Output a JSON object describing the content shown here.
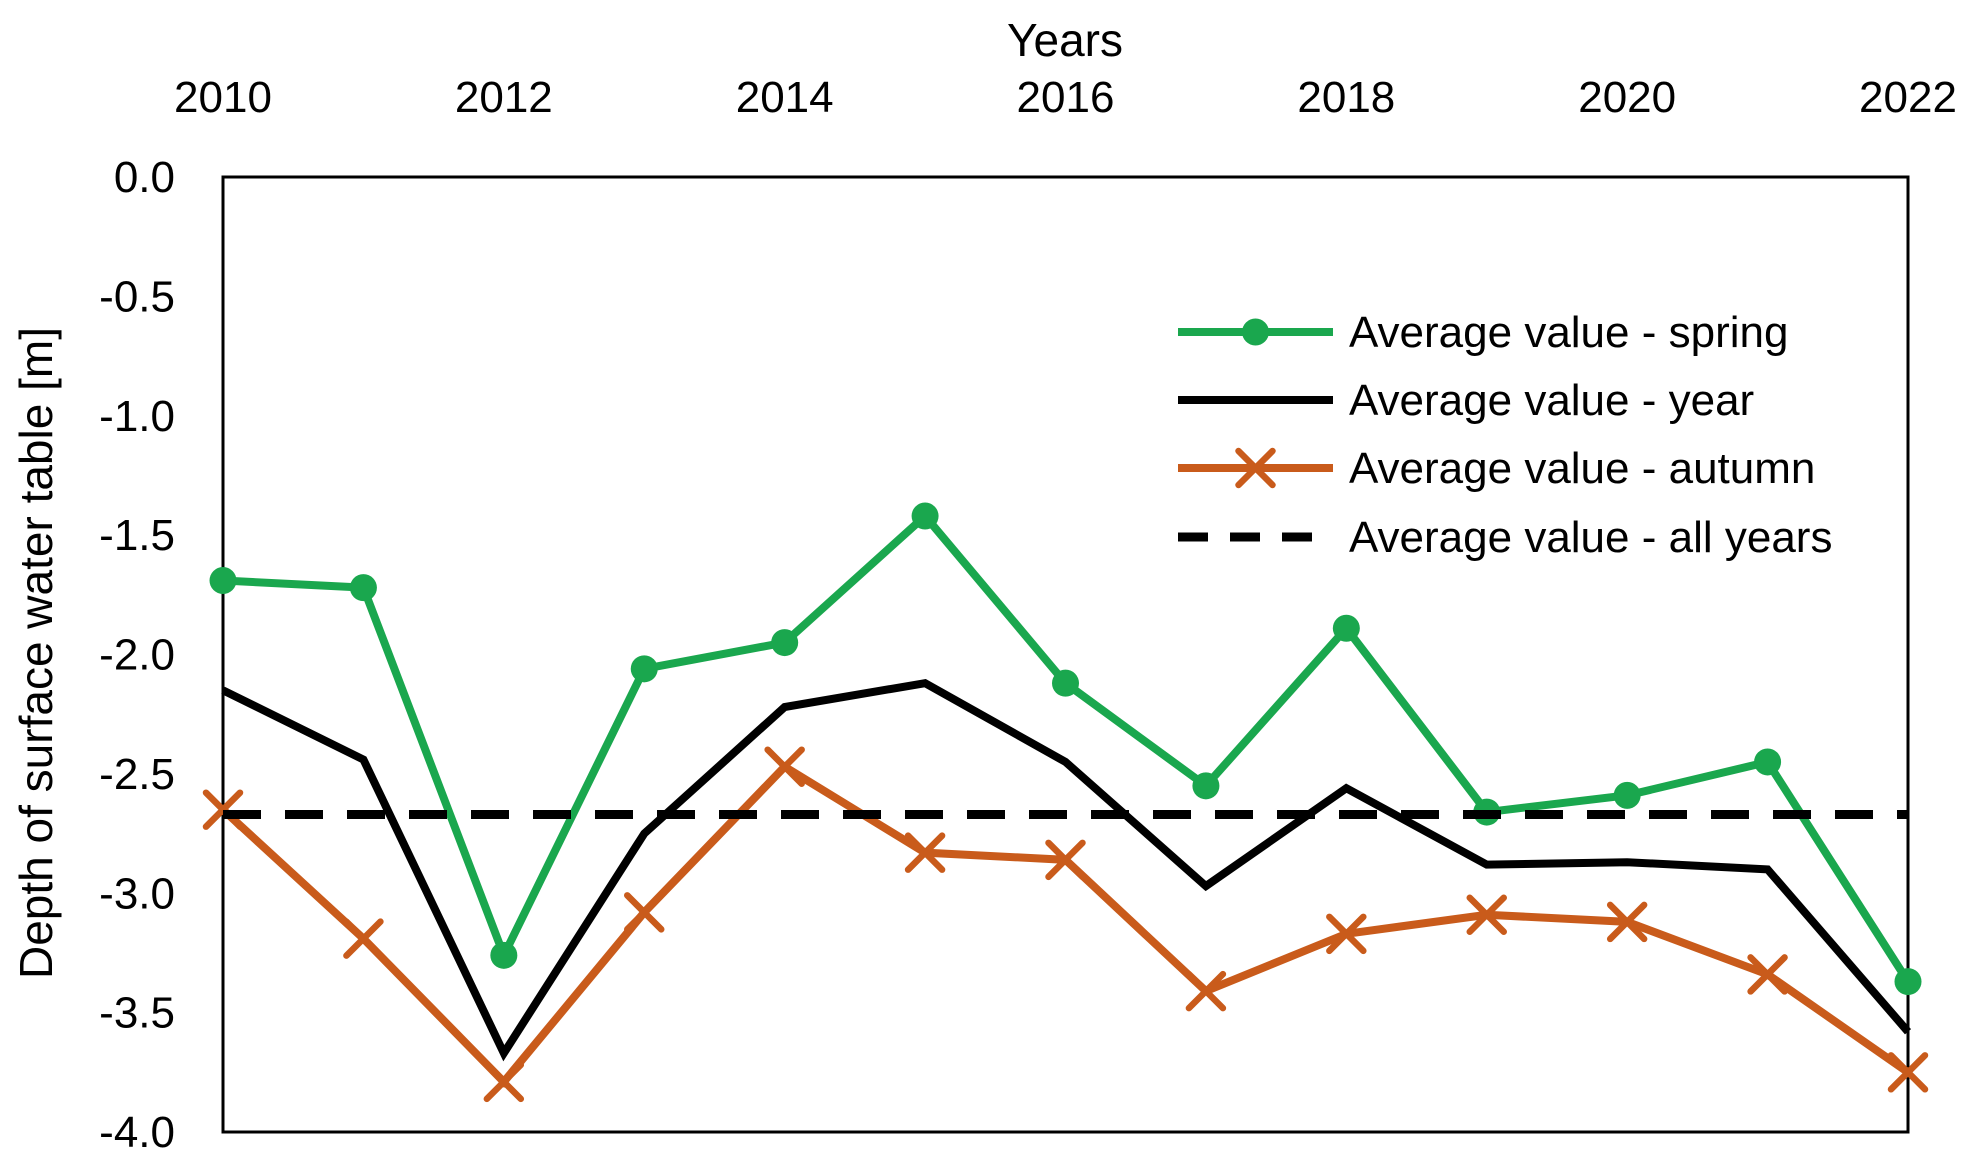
{
  "chart_data": {
    "type": "line",
    "title": "Years",
    "xlabel": "Years",
    "ylabel": "Depth of surface water table [m]",
    "x": [
      2010,
      2011,
      2012,
      2013,
      2014,
      2015,
      2016,
      2017,
      2018,
      2019,
      2020,
      2021,
      2022
    ],
    "x_tick_labels": [
      "2010",
      "2012",
      "2014",
      "2016",
      "2018",
      "2020",
      "2022"
    ],
    "x_ticks": [
      2010,
      2012,
      2014,
      2016,
      2018,
      2020,
      2022
    ],
    "y_tick_labels": [
      "0.0",
      "-0.5",
      "-1.0",
      "-1.5",
      "-2.0",
      "-2.5",
      "-3.0",
      "-3.5",
      "-4.0"
    ],
    "y_ticks": [
      0.0,
      -0.5,
      -1.0,
      -1.5,
      -2.0,
      -2.5,
      -3.0,
      -3.5,
      -4.0
    ],
    "xlim": [
      2010,
      2022
    ],
    "ylim": [
      -4.0,
      0.0
    ],
    "grid": false,
    "legend_position": "inside upper right",
    "series": [
      {
        "name": "Average value - spring",
        "color": "#1aa74e",
        "marker": "circle",
        "line_style": "solid",
        "values": [
          -1.69,
          -1.72,
          -3.26,
          -2.06,
          -1.95,
          -1.42,
          -2.12,
          -2.55,
          -1.89,
          -2.66,
          -2.59,
          -2.45,
          -3.37
        ]
      },
      {
        "name": "Average value - year",
        "color": "#000000",
        "marker": "none",
        "line_style": "solid",
        "values": [
          -2.15,
          -2.44,
          -3.67,
          -2.75,
          -2.22,
          -2.12,
          -2.45,
          -2.97,
          -2.56,
          -2.88,
          -2.87,
          -2.9,
          -3.58
        ]
      },
      {
        "name": "Average value - autumn",
        "color": "#c95b1b",
        "marker": "x",
        "line_style": "solid",
        "values": [
          -2.65,
          -3.19,
          -3.79,
          -3.08,
          -2.47,
          -2.83,
          -2.86,
          -3.41,
          -3.17,
          -3.09,
          -3.12,
          -3.34,
          -3.75
        ]
      },
      {
        "name": "Average value - all years",
        "color": "#000000",
        "marker": "none",
        "line_style": "dashed",
        "constant_value": -2.67
      }
    ]
  }
}
